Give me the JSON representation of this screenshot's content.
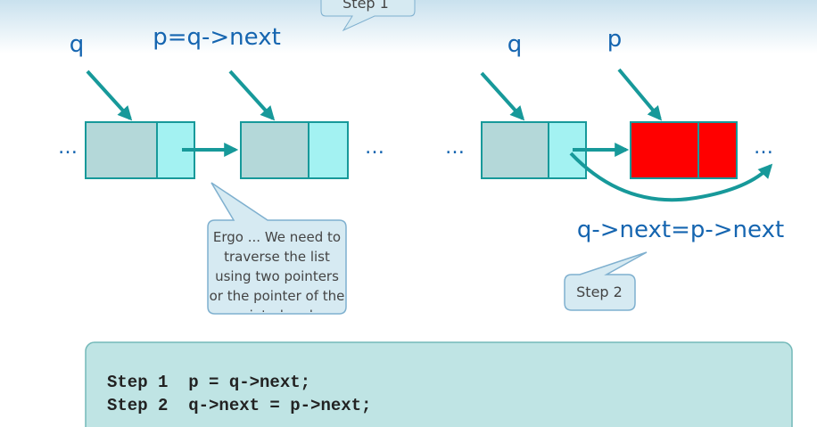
{
  "callouts": {
    "step1": "Step 1",
    "step2": "Step 2",
    "note": "Ergo ... We need to traverse the list using two pointers or the pointer of the pointed node"
  },
  "left_diagram": {
    "pointer_q": "q",
    "pointer_p": "p=q->next",
    "ellipsis_left": "…",
    "ellipsis_right": "…"
  },
  "right_diagram": {
    "pointer_q": "q",
    "pointer_p": "p",
    "ellipsis_left": "…",
    "ellipsis_right": "…",
    "operation": "q->next=p->next"
  },
  "code": {
    "lines": [
      "Step 1  p = q->next;",
      "Step 2  q->next = p->next;"
    ]
  }
}
